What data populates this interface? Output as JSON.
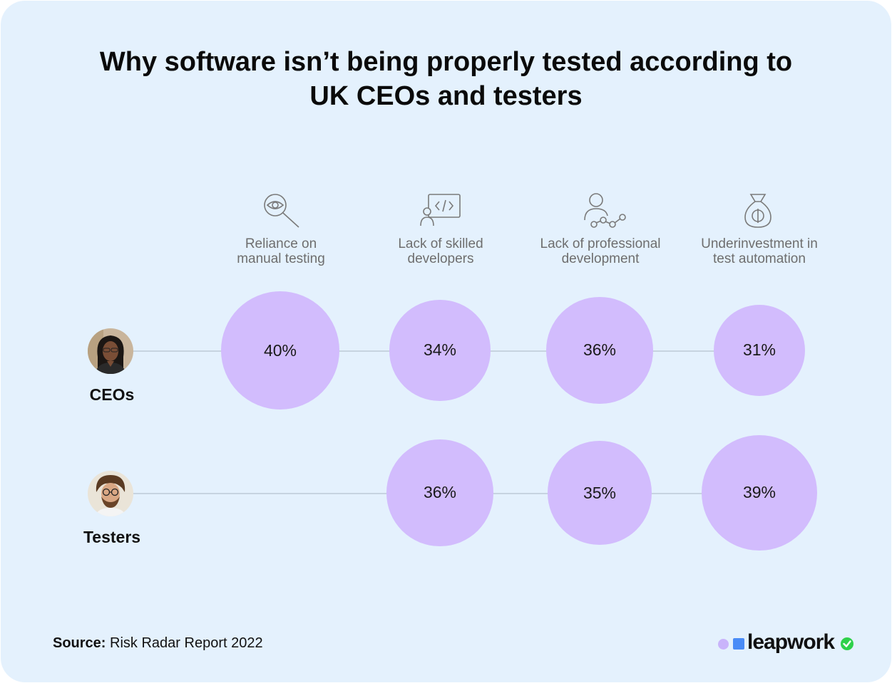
{
  "title_lines": [
    "Why software isn’t being properly tested according to",
    "UK CEOs and testers"
  ],
  "source": {
    "label": "Source:",
    "text": "Risk Radar Report 2022"
  },
  "logo": {
    "text": "leapwork"
  },
  "colors": {
    "background": "#e4f1fd",
    "bubble": "#d2bcfd",
    "line": "#c6d3e0",
    "logo_dot": "#c9b4fb",
    "logo_square": "#4a8cf7",
    "logo_check": "#2ed14a"
  },
  "chart_data": {
    "type": "bubble-matrix",
    "categories": [
      {
        "lines": [
          "Reliance on",
          "manual testing"
        ],
        "icon": "eye-magnifier-icon"
      },
      {
        "lines": [
          "Lack of skilled",
          "developers"
        ],
        "icon": "developer-code-icon"
      },
      {
        "lines": [
          "Lack of professional",
          "development"
        ],
        "icon": "person-progress-icon"
      },
      {
        "lines": [
          "Underinvestment in",
          "test automation"
        ],
        "icon": "money-bag-icon"
      }
    ],
    "series": [
      {
        "name": "CEOs",
        "avatar": "ceo-avatar",
        "values": [
          40,
          34,
          36,
          31
        ]
      },
      {
        "name": "Testers",
        "avatar": "tester-avatar",
        "values": [
          null,
          36,
          35,
          39
        ]
      }
    ],
    "value_suffix": "%"
  }
}
